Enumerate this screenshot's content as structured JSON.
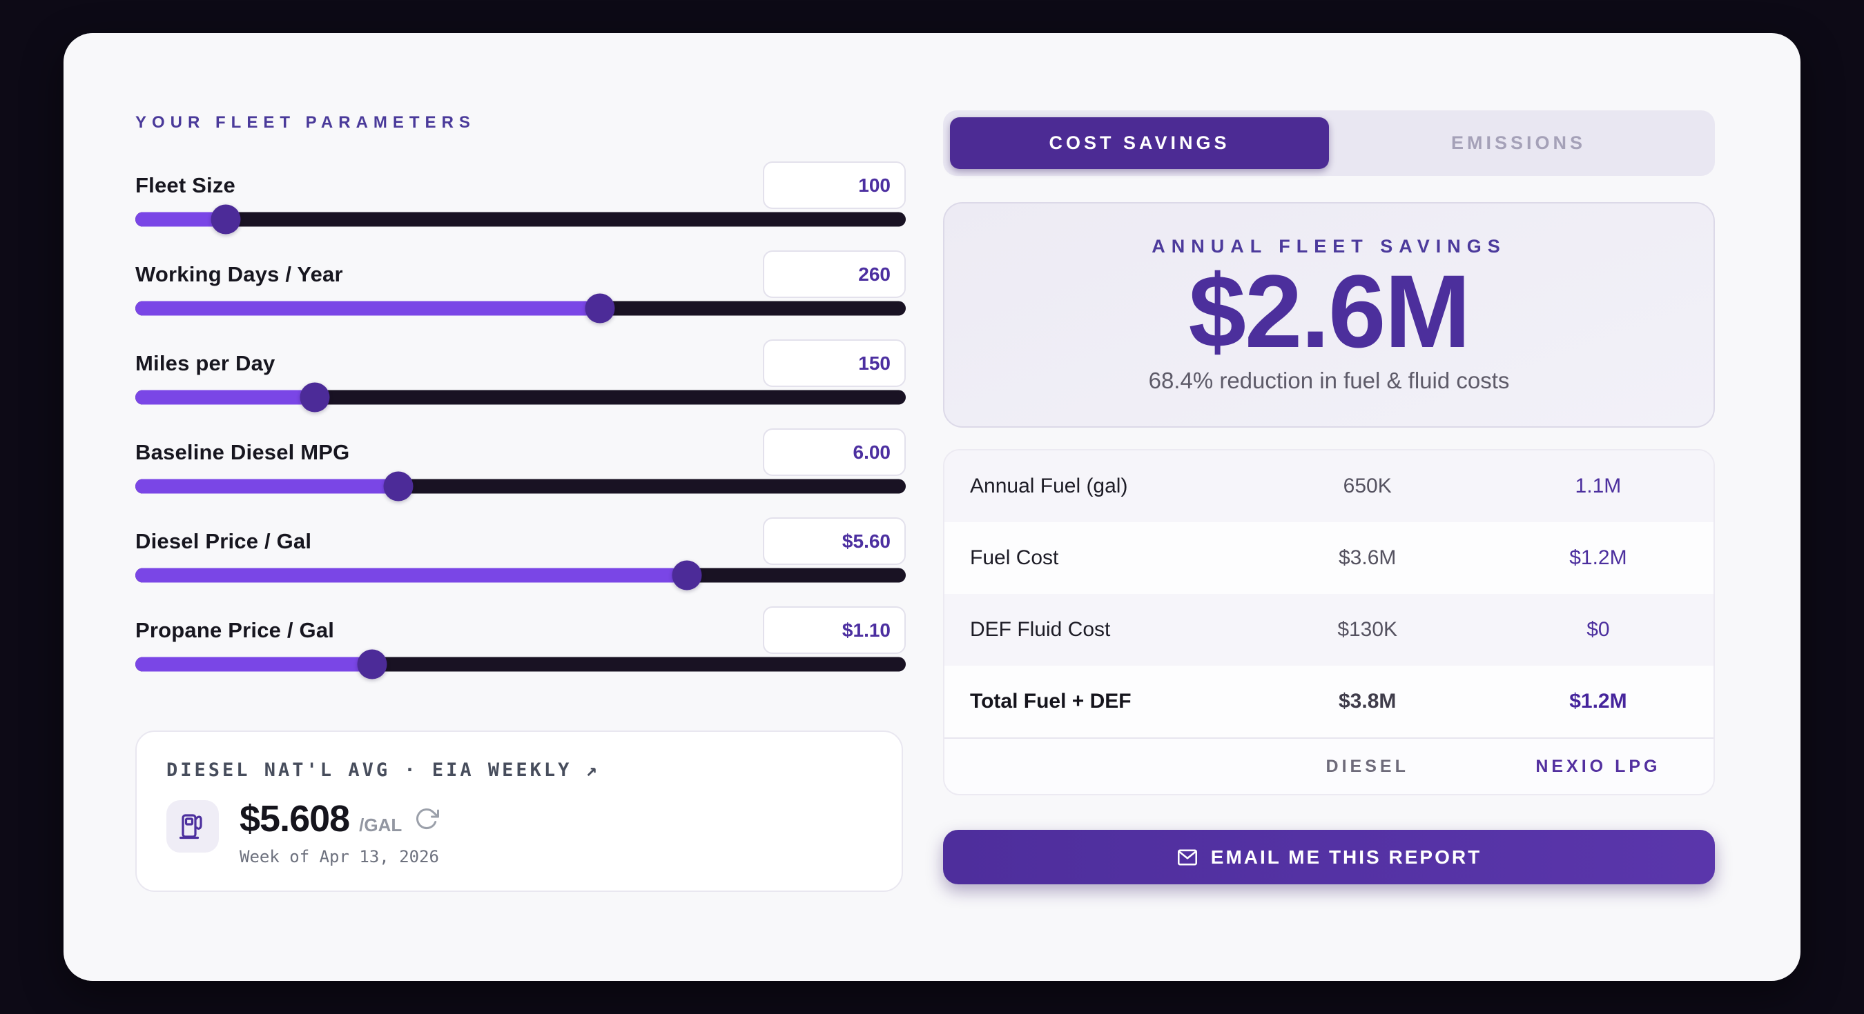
{
  "theme": {
    "page_bg": "#0d0a16",
    "card_bg": "#f8f8fa",
    "accent": "#7a46e6",
    "accent_deep": "#4c2b94",
    "value_purple": "#4c2f9e"
  },
  "left": {
    "heading": "YOUR FLEET PARAMETERS",
    "params": [
      {
        "label": "Fleet Size",
        "value": "100",
        "fill_pct": 11.7
      },
      {
        "label": "Working Days / Year",
        "value": "260",
        "fill_pct": 60.3
      },
      {
        "label": "Miles per Day",
        "value": "150",
        "fill_pct": 23.3
      },
      {
        "label": "Baseline Diesel MPG",
        "value": "6.00",
        "fill_pct": 34.1
      },
      {
        "label": "Diesel Price / Gal",
        "value": "$5.60",
        "fill_pct": 71.6
      },
      {
        "label": "Propane Price / Gal",
        "value": "$1.10",
        "fill_pct": 30.7
      }
    ],
    "diesel_card": {
      "title": "DIESEL NAT'L AVG · EIA WEEKLY",
      "link_arrow": "↗",
      "price": "$5.608",
      "unit": "/GAL",
      "subtitle": "Week of Apr 13, 2026",
      "pump_icon": "fuel-pump",
      "refresh_icon": "refresh"
    }
  },
  "right": {
    "tabs": [
      {
        "label": "COST SAVINGS",
        "active": true
      },
      {
        "label": "EMISSIONS",
        "active": false
      }
    ],
    "savings": {
      "title": "ANNUAL FLEET SAVINGS",
      "amount": "$2.6M",
      "subtitle": "68.4% reduction in fuel & fluid costs"
    },
    "table": {
      "rows": [
        {
          "label": "Annual Fuel (gal)",
          "diesel": "650K",
          "nexio": "1.1M"
        },
        {
          "label": "Fuel Cost",
          "diesel": "$3.6M",
          "nexio": "$1.2M"
        },
        {
          "label": "DEF Fluid Cost",
          "diesel": "$130K",
          "nexio": "$0"
        },
        {
          "label": "Total Fuel + DEF",
          "diesel": "$3.8M",
          "nexio": "$1.2M"
        }
      ],
      "footer": {
        "diesel": "DIESEL",
        "nexio": "NEXIO LPG"
      }
    },
    "email_button": "EMAIL ME THIS REPORT"
  }
}
